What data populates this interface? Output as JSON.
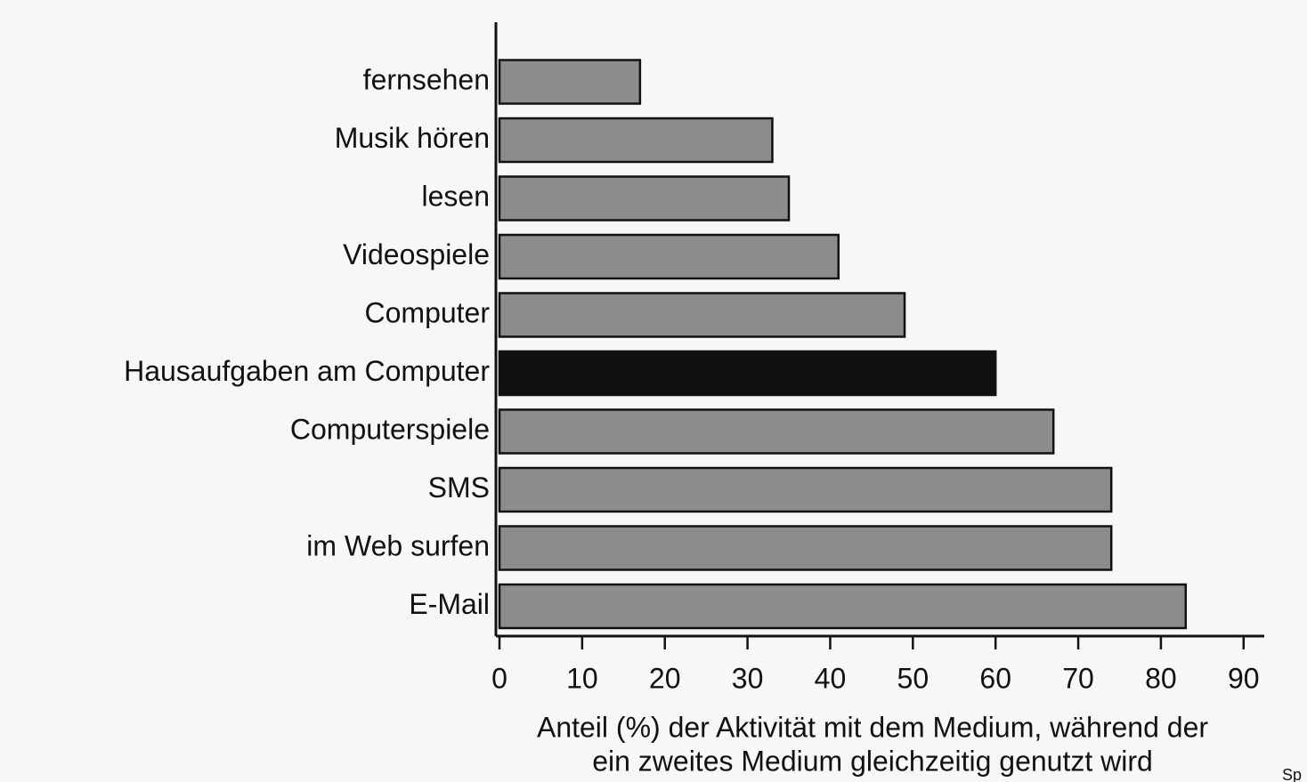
{
  "chart_data": {
    "type": "barh",
    "categories": [
      "fernsehen",
      "Musik hören",
      "lesen",
      "Videospiele",
      "Computer",
      "Hausaufgaben am Computer",
      "Computerspiele",
      "SMS",
      "im Web surfen",
      "E-Mail"
    ],
    "values": [
      17,
      33,
      35,
      41,
      49,
      60,
      67,
      74,
      74,
      83
    ],
    "colors": [
      "#8c8c8c",
      "#8c8c8c",
      "#8c8c8c",
      "#8c8c8c",
      "#8c8c8c",
      "#111111",
      "#8c8c8c",
      "#8c8c8c",
      "#8c8c8c",
      "#8c8c8c"
    ],
    "xlim": [
      0,
      92.5
    ],
    "xticks": [
      0,
      10,
      20,
      30,
      40,
      50,
      60,
      70,
      80,
      90
    ],
    "xlabel": [
      "Anteil (%) der Aktivität mit dem Medium, während der",
      "ein zweites Medium gleichzeitig genutzt wird"
    ],
    "annotation": "Sp"
  }
}
